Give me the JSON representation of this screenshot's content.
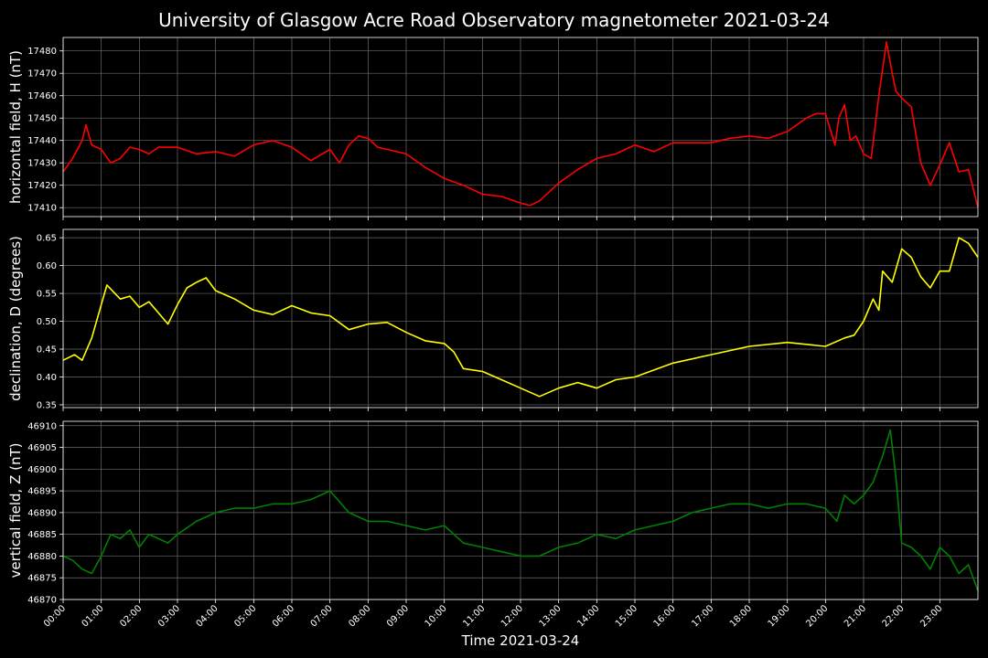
{
  "figure": {
    "title": "University of Glasgow Acre Road Observatory magnetometer 2021-03-24",
    "xlabel": "Time 2021-03-24"
  },
  "chart_data": [
    {
      "type": "line",
      "ylabel": "horizontal field, H (nT)",
      "color": "#ff0000",
      "ylim": [
        17406,
        17486
      ],
      "yticks": [
        17410,
        17420,
        17430,
        17440,
        17450,
        17460,
        17470,
        17480
      ],
      "xlim": [
        0,
        24
      ],
      "grid": true,
      "series": [
        {
          "x": [
            0,
            0.25,
            0.5,
            0.6,
            0.75,
            1.0,
            1.25,
            1.5,
            1.75,
            2.0,
            2.25,
            2.5,
            3.0,
            3.5,
            4.0,
            4.5,
            5.0,
            5.5,
            6.0,
            6.5,
            7.0,
            7.25,
            7.5,
            7.75,
            8.0,
            8.25,
            8.5,
            9.0,
            9.5,
            10.0,
            10.5,
            11.0,
            11.5,
            12.0,
            12.25,
            12.5,
            13.0,
            13.5,
            14.0,
            14.5,
            15.0,
            15.5,
            16.0,
            16.5,
            17.0,
            17.5,
            18.0,
            18.5,
            19.0,
            19.5,
            19.75,
            20.0,
            20.25,
            20.35,
            20.5,
            20.65,
            20.8,
            21.0,
            21.2,
            21.4,
            21.6,
            21.75,
            21.85,
            22.0,
            22.25,
            22.5,
            22.75,
            23.0,
            23.25,
            23.5,
            23.75,
            24.0
          ],
          "y": [
            17426,
            17432,
            17440,
            17447,
            17438,
            17436,
            17430,
            17432,
            17437,
            17436,
            17434,
            17437,
            17437,
            17434,
            17435,
            17433,
            17438,
            17440,
            17437,
            17431,
            17436,
            17430,
            17438,
            17442,
            17441,
            17437,
            17436,
            17434,
            17428,
            17423,
            17420,
            17416,
            17415,
            17412,
            17411,
            17413,
            17421,
            17427,
            17432,
            17434,
            17438,
            17435,
            17439,
            17439,
            17439,
            17441,
            17442,
            17441,
            17444,
            17450,
            17452,
            17452,
            17438,
            17450,
            17456,
            17440,
            17442,
            17434,
            17432,
            17460,
            17484,
            17470,
            17462,
            17459,
            17455,
            17430,
            17420,
            17429,
            17439,
            17426,
            17427,
            17410
          ]
        }
      ]
    },
    {
      "type": "line",
      "ylabel": "declination, D (degrees)",
      "color": "#ffff00",
      "ylim": [
        0.345,
        0.665
      ],
      "yticks": [
        0.35,
        0.4,
        0.45,
        0.5,
        0.55,
        0.6,
        0.65
      ],
      "xlim": [
        0,
        24
      ],
      "grid": true,
      "series": [
        {
          "x": [
            0,
            0.3,
            0.5,
            0.75,
            1.0,
            1.15,
            1.5,
            1.75,
            2.0,
            2.25,
            2.5,
            2.75,
            3.0,
            3.25,
            3.5,
            3.75,
            4.0,
            4.5,
            5.0,
            5.5,
            6.0,
            6.5,
            7.0,
            7.5,
            8.0,
            8.5,
            9.0,
            9.5,
            10.0,
            10.25,
            10.5,
            11.0,
            11.5,
            12.0,
            12.5,
            13.0,
            13.5,
            14.0,
            14.5,
            15.0,
            16.0,
            17.0,
            18.0,
            19.0,
            20.0,
            20.5,
            20.75,
            21.0,
            21.25,
            21.4,
            21.5,
            21.75,
            22.0,
            22.25,
            22.5,
            22.75,
            23.0,
            23.25,
            23.5,
            23.75,
            24.0
          ],
          "y": [
            0.43,
            0.44,
            0.43,
            0.47,
            0.53,
            0.565,
            0.54,
            0.545,
            0.525,
            0.535,
            0.515,
            0.495,
            0.53,
            0.56,
            0.57,
            0.578,
            0.555,
            0.54,
            0.52,
            0.512,
            0.528,
            0.515,
            0.51,
            0.485,
            0.495,
            0.498,
            0.48,
            0.465,
            0.46,
            0.445,
            0.415,
            0.41,
            0.395,
            0.38,
            0.365,
            0.38,
            0.39,
            0.38,
            0.395,
            0.4,
            0.425,
            0.44,
            0.455,
            0.462,
            0.455,
            0.47,
            0.475,
            0.5,
            0.54,
            0.52,
            0.59,
            0.57,
            0.63,
            0.615,
            0.58,
            0.56,
            0.59,
            0.59,
            0.65,
            0.64,
            0.615
          ]
        }
      ]
    },
    {
      "type": "line",
      "ylabel": "vertical field, Z (nT)",
      "color": "#008000",
      "ylim": [
        46870,
        46911
      ],
      "yticks": [
        46870,
        46875,
        46880,
        46885,
        46890,
        46895,
        46900,
        46905,
        46910
      ],
      "xlim": [
        0,
        24
      ],
      "grid": true,
      "series": [
        {
          "x": [
            0,
            0.25,
            0.5,
            0.75,
            1.0,
            1.25,
            1.5,
            1.75,
            2.0,
            2.25,
            2.5,
            2.75,
            3.0,
            3.5,
            4.0,
            4.5,
            5.0,
            5.5,
            6.0,
            6.5,
            7.0,
            7.5,
            8.0,
            8.5,
            9.0,
            9.5,
            10.0,
            10.5,
            11.0,
            11.5,
            12.0,
            12.5,
            13.0,
            13.5,
            14.0,
            14.5,
            15.0,
            15.5,
            16.0,
            16.5,
            17.0,
            17.5,
            18.0,
            18.5,
            19.0,
            19.5,
            20.0,
            20.3,
            20.5,
            20.75,
            21.0,
            21.25,
            21.5,
            21.7,
            21.85,
            22.0,
            22.25,
            22.5,
            22.75,
            23.0,
            23.25,
            23.5,
            23.75,
            24.0
          ],
          "y": [
            46880,
            46879,
            46877,
            46876,
            46880,
            46885,
            46884,
            46886,
            46882,
            46885,
            46884,
            46883,
            46885,
            46888,
            46890,
            46891,
            46891,
            46892,
            46892,
            46893,
            46895,
            46890,
            46888,
            46888,
            46887,
            46886,
            46887,
            46883,
            46882,
            46881,
            46880,
            46880,
            46882,
            46883,
            46885,
            46884,
            46886,
            46887,
            46888,
            46890,
            46891,
            46892,
            46892,
            46891,
            46892,
            46892,
            46891,
            46888,
            46894,
            46892,
            46894,
            46897,
            46903,
            46909,
            46898,
            46883,
            46882,
            46880,
            46877,
            46882,
            46880,
            46876,
            46878,
            46872
          ]
        }
      ]
    }
  ],
  "x_ticks": [
    "00:00",
    "01:00",
    "02:00",
    "03:00",
    "04:00",
    "05:00",
    "06:00",
    "07:00",
    "08:00",
    "09:00",
    "10:00",
    "11:00",
    "12:00",
    "13:00",
    "14:00",
    "15:00",
    "16:00",
    "17:00",
    "18:00",
    "19:00",
    "20:00",
    "21:00",
    "22:00",
    "23:00"
  ]
}
